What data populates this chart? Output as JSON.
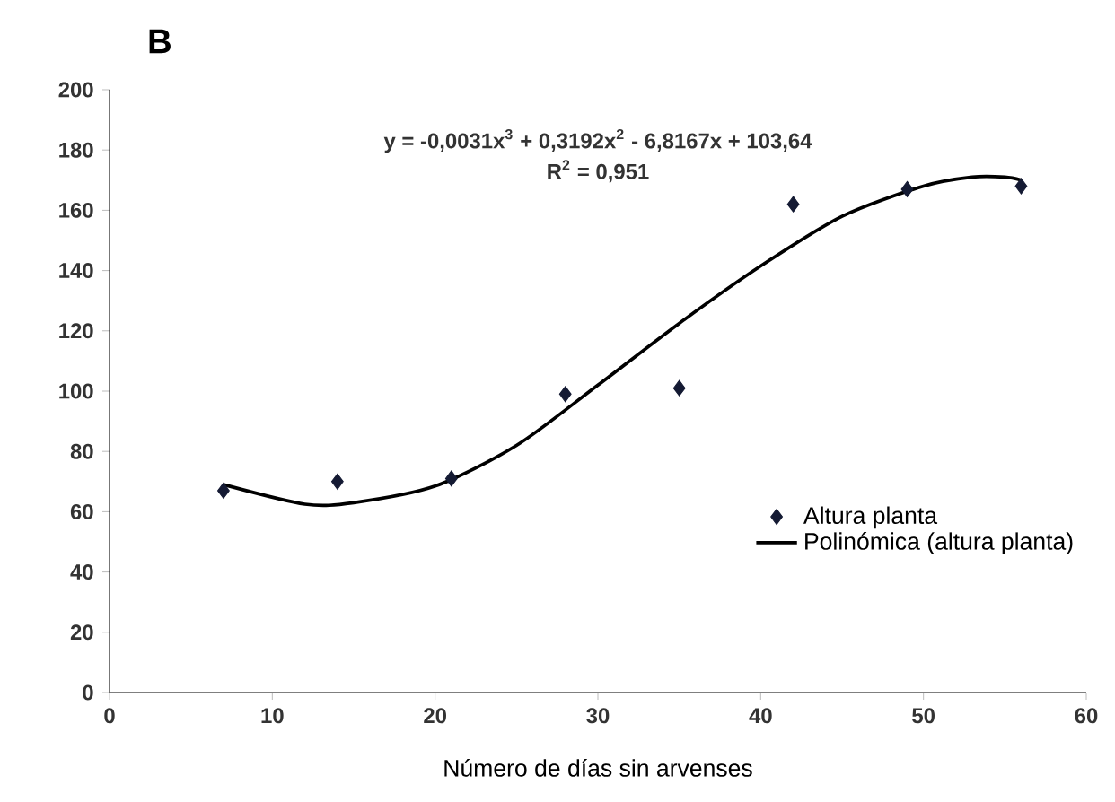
{
  "chart_data": {
    "type": "scatter",
    "title": "B",
    "xlabel": "Número de días sin arvenses",
    "annotations": [
      "y = -0,0031x$^{3}$ + 0,3192x$^{2}$ - 6,8167x + 103,64",
      "R$^{2}$ = 0,951"
    ],
    "xlim": [
      0,
      60
    ],
    "xticks": [
      0,
      10,
      20,
      30,
      40,
      50,
      60
    ],
    "ylim": [
      0,
      200
    ],
    "yticks": [
      0,
      20,
      40,
      60,
      80,
      100,
      120,
      140,
      160,
      180,
      200
    ],
    "grid": false,
    "legend": "right",
    "series": [
      {
        "name": "Altura planta",
        "marker": "diamond",
        "color": "#141a33",
        "x": [
          7,
          14,
          21,
          28,
          35,
          42,
          49,
          56
        ],
        "values": [
          67,
          70,
          71,
          99,
          101,
          162,
          167,
          168
        ]
      },
      {
        "name": "Polinómica (altura planta)",
        "type": "line",
        "marker": "none",
        "line_style": "solid",
        "color": "#000000",
        "x": [
          7,
          12,
          15,
          20,
          25,
          30,
          35,
          40,
          45,
          50,
          53,
          55,
          56
        ],
        "values": [
          69,
          62.5,
          63,
          68.5,
          82,
          102,
          122.5,
          141.5,
          158,
          168,
          171,
          171,
          170
        ]
      }
    ]
  }
}
